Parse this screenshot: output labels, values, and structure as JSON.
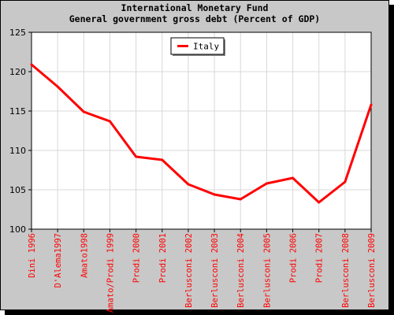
{
  "title_lines": [
    "International Monetary Fund",
    "General government gross debt (Percent of GDP)"
  ],
  "colors": {
    "series": "#ff0000",
    "tick_labels_x": "#ff0000",
    "background": "#c8c8c8",
    "plot": "#ffffff"
  },
  "chart_data": {
    "type": "line",
    "title": "International Monetary Fund\nGeneral government gross debt (Percent of GDP)",
    "xlabel": "",
    "ylabel": "",
    "categories": [
      "Dini 1996",
      "D'Alema1997",
      "Amato1998",
      "Amato/Prodi 1999",
      "Prodi 2000",
      "Prodi 2001",
      "Berlusconi 2002",
      "Berlusconi 2003",
      "Berlusconi 2004",
      "Berlusconi 2005",
      "Prodi 2006",
      "Prodi 2007",
      "Berlusconi 2008",
      "Berlusconi 2009"
    ],
    "series": [
      {
        "name": "Italy",
        "values": [
          120.9,
          118.1,
          114.9,
          113.7,
          109.2,
          108.8,
          105.7,
          104.4,
          103.8,
          105.8,
          106.5,
          103.4,
          106.0,
          115.8
        ]
      }
    ],
    "ylim": [
      100,
      125
    ],
    "yticks": [
      100,
      105,
      110,
      115,
      120,
      125
    ],
    "grid": true,
    "legend": "top-center"
  }
}
